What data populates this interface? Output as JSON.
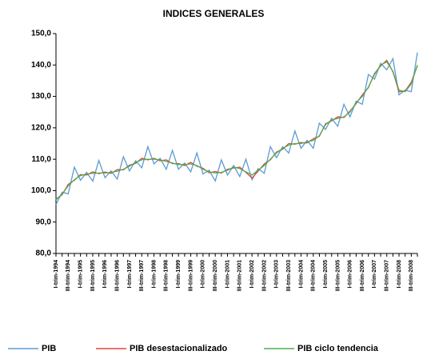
{
  "chart_data": {
    "type": "line",
    "title": "INDICES GENERALES",
    "categories": [
      "I-trim-1994",
      null,
      "III-trim-1994",
      null,
      "I-trim-1995",
      null,
      "III-trim-1995",
      null,
      "I-trim-1996",
      null,
      "III-trim-1996",
      null,
      "I-trim-1997",
      null,
      "III-trim-1997",
      null,
      "I-trim-1998",
      null,
      "III-trim-1998",
      null,
      "I-trim-1999",
      null,
      "III-trim-1999",
      null,
      "I-trim-2000",
      null,
      "III-trim-2000",
      null,
      "I-trim-2001",
      null,
      "III-trim-2001",
      null,
      "I-trim-2002",
      null,
      "III-trim-2002",
      null,
      "I-trim-2003",
      null,
      "III-trim-2003",
      null,
      "I-trim-2004",
      null,
      "III-trim-2004",
      null,
      "I-trim-2005",
      null,
      "III-trim-2005",
      null,
      "I-trim-2006",
      null,
      "III-trim-2006",
      null,
      "I-trim-2007",
      null,
      "III-trim-2007",
      null,
      "I-trim-2008",
      null,
      "III-trim-2008",
      null
    ],
    "series": [
      {
        "name": "PIB",
        "color": "#5b9bd5",
        "values": [
          95.5,
          99.5,
          99,
          107.5,
          103.3,
          105.8,
          103,
          109.6,
          104.1,
          106.3,
          103.7,
          110.8,
          106.3,
          109.5,
          107.3,
          114,
          108.5,
          110.3,
          106.8,
          112.8,
          106.8,
          108.8,
          106,
          112,
          105.3,
          106.5,
          103.1,
          109.8,
          105,
          108,
          104.5,
          110,
          103.5,
          107,
          105.5,
          114,
          110.5,
          114,
          112,
          119,
          113.5,
          116,
          113.5,
          121.5,
          119.5,
          123,
          120.5,
          127.5,
          123.5,
          128.5,
          127.5,
          137,
          135.5,
          140.5,
          138.5,
          142,
          130.5,
          132,
          131.5,
          144
        ]
      },
      {
        "name": "PIB desestacionalizado",
        "color": "#e8413c",
        "values": [
          97.3,
          98.7,
          102,
          103.3,
          105.1,
          105,
          106,
          105.4,
          105.9,
          105.5,
          106.7,
          106.6,
          108.1,
          108.7,
          110.3,
          109.8,
          110.3,
          109.5,
          109.8,
          108.6,
          108.6,
          108,
          109,
          107.8,
          107.1,
          105.7,
          106.1,
          105.6,
          106.8,
          107.2,
          107.5,
          105.8,
          104,
          106.2,
          108.5,
          109.8,
          112.3,
          113.2,
          115,
          114.8,
          115.3,
          115.2,
          116.5,
          117.3,
          121.3,
          122.2,
          123.5,
          123.3,
          125.3,
          127.7,
          130.5,
          132.8,
          137.3,
          139.7,
          141.5,
          137.8,
          131.5,
          131.7,
          134.5,
          139.8
        ]
      },
      {
        "name": "PIB ciclo tendencia",
        "color": "#4caf50",
        "values": [
          97,
          99,
          101.5,
          103.5,
          104.8,
          105.3,
          105.5,
          105.6,
          105.6,
          105.8,
          106.2,
          106.8,
          107.8,
          109,
          109.8,
          110,
          110,
          109.8,
          109.3,
          108.8,
          108.3,
          108.3,
          108.5,
          108,
          106.8,
          106,
          105.6,
          105.8,
          106.5,
          107.5,
          107,
          106,
          105,
          106.5,
          108,
          110,
          112,
          113.5,
          114.5,
          115,
          115,
          115.5,
          116,
          117.5,
          121,
          122.5,
          123,
          123.5,
          125,
          128,
          130,
          133,
          137,
          140,
          141,
          138,
          132,
          131.5,
          134,
          140
        ]
      }
    ],
    "ylim": [
      80,
      150
    ],
    "yticks": [
      {
        "value": 80,
        "label": "80,0"
      },
      {
        "value": 90,
        "label": "90,0"
      },
      {
        "value": 100,
        "label": "100,0"
      },
      {
        "value": 110,
        "label": "110,0"
      },
      {
        "value": 120,
        "label": "120,0"
      },
      {
        "value": 130,
        "label": "130,0"
      },
      {
        "value": 140,
        "label": "140,0"
      },
      {
        "value": 150,
        "label": "150,0"
      }
    ],
    "grid": false,
    "legend": "bottom"
  }
}
